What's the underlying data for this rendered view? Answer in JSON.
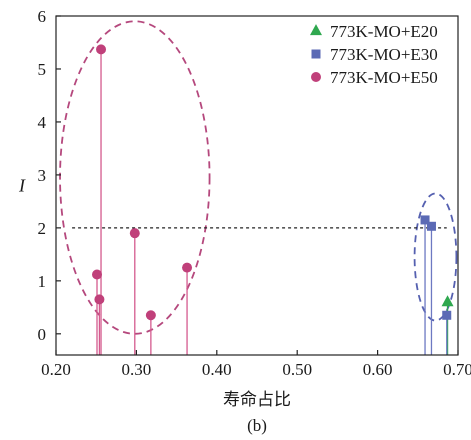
{
  "chart_data": {
    "type": "scatter",
    "xlabel": "寿命占比",
    "ylabel": "I",
    "caption": "(b)",
    "xlim": [
      0.2,
      0.7
    ],
    "ylim": [
      -0.4,
      6
    ],
    "xticks": [
      0.2,
      0.3,
      0.4,
      0.5,
      0.6,
      0.7
    ],
    "xtick_labels": [
      "0.20",
      "0.30",
      "0.40",
      "0.50",
      "0.60",
      "0.70"
    ],
    "yticks": [
      0,
      1,
      2,
      3,
      4,
      5,
      6
    ],
    "ytick_labels": [
      "0",
      "1",
      "2",
      "3",
      "4",
      "5",
      "6"
    ],
    "threshold": 2,
    "stems": true,
    "legend_position": "top-right",
    "series": [
      {
        "name": "773K-MO+E20",
        "marker": "triangle",
        "color": "#2fa84f",
        "stem_color": "#2fa84f",
        "points": [
          [
            0.687,
            0.6
          ]
        ]
      },
      {
        "name": "773K-MO+E30",
        "marker": "square",
        "color": "#5b6ab5",
        "stem_color": "#6d79c2",
        "points": [
          [
            0.659,
            2.15
          ],
          [
            0.667,
            2.03
          ],
          [
            0.686,
            0.35
          ]
        ]
      },
      {
        "name": "773K-MO+E50",
        "marker": "circle",
        "color": "#c0407a",
        "stem_color": "#d45a8e",
        "points": [
          [
            0.251,
            1.12
          ],
          [
            0.254,
            0.65
          ],
          [
            0.256,
            5.37
          ],
          [
            0.298,
            1.9
          ],
          [
            0.318,
            0.35
          ],
          [
            0.363,
            1.25
          ]
        ]
      }
    ],
    "groupings": [
      {
        "color": "#b5487d",
        "cx": 0.298,
        "cy": 2.95,
        "rx": 0.093,
        "ry": 2.95
      },
      {
        "color": "#5560b0",
        "cx": 0.672,
        "cy": 1.45,
        "rx": 0.026,
        "ry": 1.2
      }
    ]
  }
}
